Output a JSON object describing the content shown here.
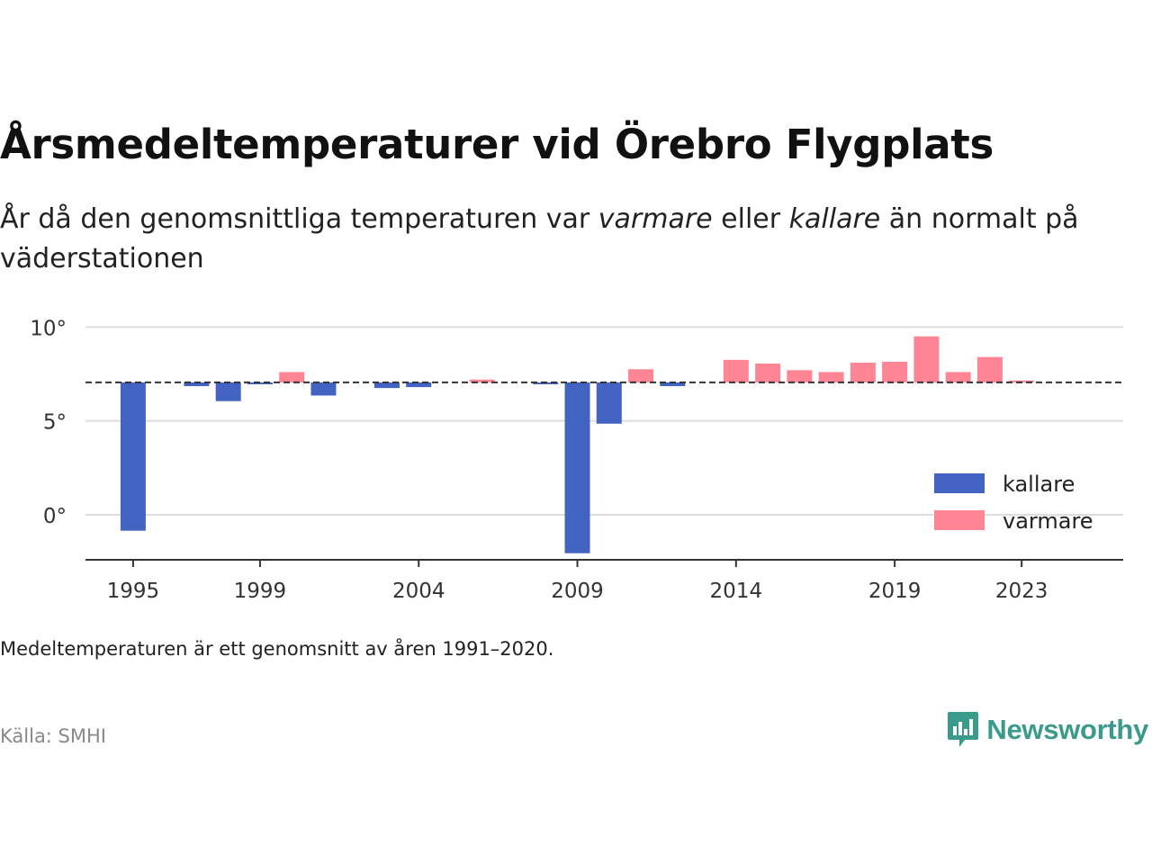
{
  "header": {
    "title": "Årsmedeltemperaturer vid Örebro Flygplats",
    "subtitle_parts": {
      "p1": "År då den genomsnittliga temperaturen var ",
      "em1": "varmare",
      "p2": " eller ",
      "em2": "kallare",
      "p3": " än normalt på väderstationen"
    }
  },
  "footer": {
    "note": "Medeltemperaturen är ett genomsnitt av åren 1991–2020.",
    "source": "Källa: SMHI",
    "brand": "Newsworthy"
  },
  "colors": {
    "kallare": "#4263c2",
    "varmare": "#ff8594",
    "grid": "#dddddd",
    "reference_line": "#333333",
    "axis": "#333333",
    "brand": "#3a9a8c"
  },
  "chart_data": {
    "type": "bar",
    "baseline": 7.05,
    "baseline_style": "dashed",
    "x": [
      1995,
      1996,
      1997,
      1998,
      1999,
      2000,
      2001,
      2002,
      2003,
      2004,
      2005,
      2006,
      2007,
      2008,
      2009,
      2010,
      2011,
      2012,
      2013,
      2014,
      2015,
      2016,
      2017,
      2018,
      2019,
      2020,
      2021,
      2022,
      2023
    ],
    "values": [
      -0.85,
      null,
      6.85,
      6.05,
      6.95,
      7.6,
      6.35,
      null,
      6.75,
      6.8,
      null,
      7.2,
      null,
      6.95,
      -2.05,
      4.85,
      7.75,
      6.85,
      null,
      8.25,
      8.05,
      7.7,
      7.6,
      8.1,
      8.15,
      9.5,
      7.6,
      8.4,
      7.15
    ],
    "series": [
      {
        "name": "kallare",
        "rule": "value < baseline"
      },
      {
        "name": "varmare",
        "rule": "value > baseline"
      }
    ],
    "xticks": [
      "1995",
      "1999",
      "2004",
      "2009",
      "2014",
      "2019",
      "2023"
    ],
    "yticks": [
      {
        "value": 0,
        "label": "0°"
      },
      {
        "value": 5,
        "label": "5°"
      },
      {
        "value": 10,
        "label": "10°"
      }
    ],
    "ylim": [
      -2.4,
      10.4
    ],
    "xlim": [
      1993.5,
      2026.2
    ],
    "grid": "horizontal",
    "legend_position": "right"
  }
}
